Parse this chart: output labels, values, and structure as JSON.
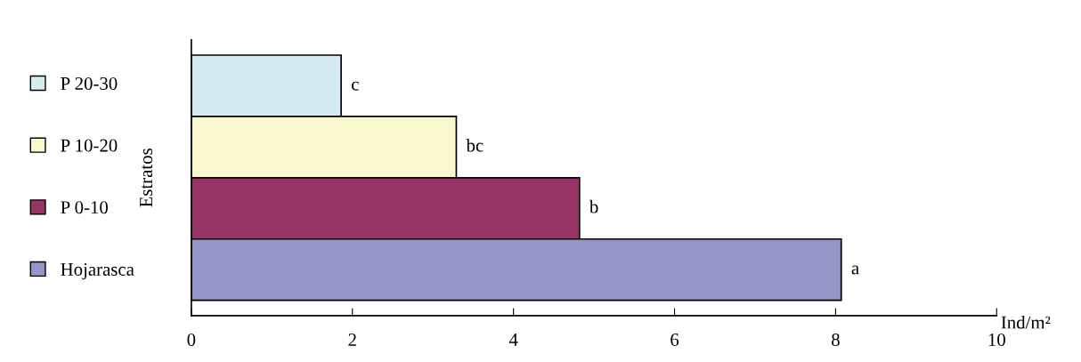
{
  "chart_data": {
    "type": "bar",
    "orientation": "horizontal",
    "ylabel": "Estratos",
    "xlabel": "Ind/m²",
    "categories": [
      null,
      null,
      null,
      null
    ],
    "series": [
      {
        "name": "P 20-30",
        "color": "#d4ecf2",
        "values": [
          1.86,
          null,
          null,
          null
        ],
        "value_labels": [
          "c",
          null,
          null,
          null
        ]
      },
      {
        "name": "P 10-20",
        "color": "#faf8cf",
        "values": [
          null,
          3.29,
          null,
          null
        ],
        "value_labels": [
          null,
          "bc",
          null,
          null
        ]
      },
      {
        "name": "P 0-10",
        "color": "#983365",
        "values": [
          null,
          null,
          4.82,
          null
        ],
        "value_labels": [
          null,
          null,
          "b",
          null
        ]
      },
      {
        "name": "Hojarasca",
        "color": "#9595c8",
        "values": [
          null,
          null,
          null,
          8.07
        ],
        "value_labels": [
          null,
          null,
          null,
          "a"
        ]
      }
    ],
    "xlim": [
      0,
      10
    ],
    "xticks": [
      0,
      2,
      4,
      6,
      8,
      10
    ],
    "grid": false,
    "legend": "left"
  }
}
